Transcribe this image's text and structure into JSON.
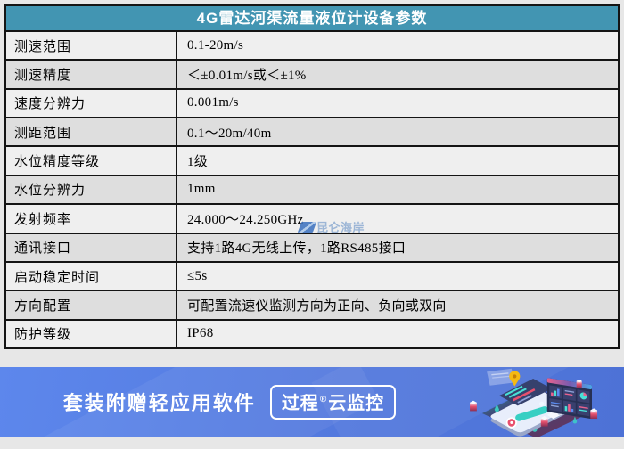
{
  "table": {
    "title": "4G雷达河渠流量液位计设备参数",
    "rows": [
      {
        "label": "测速范围",
        "value": "0.1-20m/s"
      },
      {
        "label": "测速精度",
        "value": "＜±0.01m/s或＜±1%"
      },
      {
        "label": "速度分辨力",
        "value": "0.001m/s"
      },
      {
        "label": "测距范围",
        "value": "0.1～20m/40m"
      },
      {
        "label": "水位精度等级",
        "value": "1级"
      },
      {
        "label": "水位分辨力",
        "value": "1mm"
      },
      {
        "label": "发射频率",
        "value": "24.000～24.250GHz"
      },
      {
        "label": "通讯接口",
        "value": "支持1路4G无线上传，1路RS485接口"
      },
      {
        "label": "启动稳定时间",
        "value": "≤5s"
      },
      {
        "label": "方向配置",
        "value": "可配置流速仪监测方向为正向、负向或双向"
      },
      {
        "label": "防护等级",
        "value": "IP68"
      }
    ]
  },
  "watermark": {
    "text": "昆仑海岸"
  },
  "banner": {
    "text": "套装附赠轻应用软件",
    "badge_prefix": "过程",
    "badge_reg": "®",
    "badge_suffix": "云监控"
  },
  "colors": {
    "header_teal": "#4295b2",
    "banner_blue": "#5379de",
    "row_light": "#efefef",
    "row_dark": "#dedede",
    "accent_red": "#e8506e",
    "accent_teal": "#3bd6c6",
    "accent_yellow": "#f5b913",
    "panel_navy": "#273054"
  }
}
